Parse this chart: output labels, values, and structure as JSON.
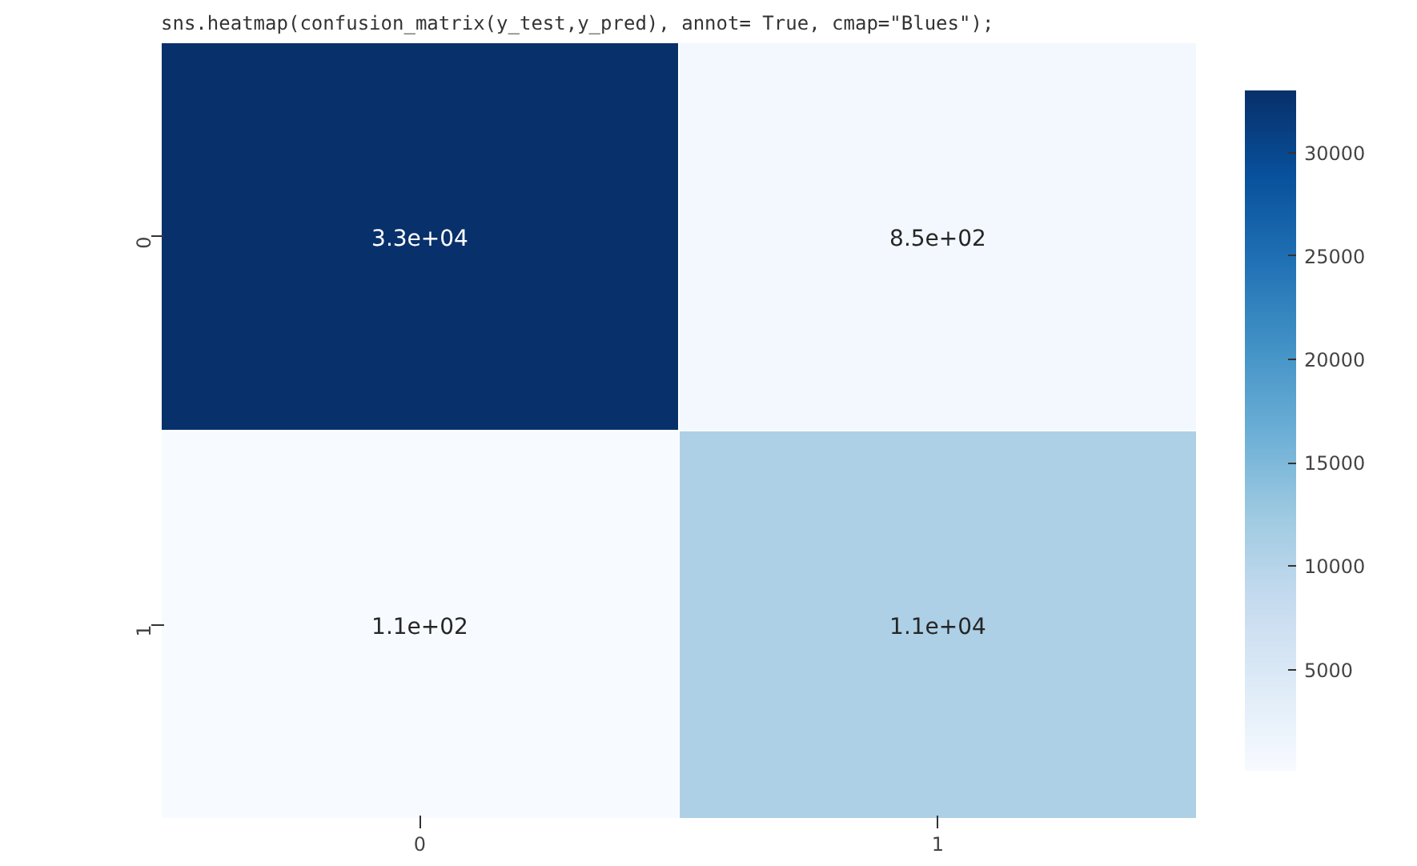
{
  "chart_data": {
    "type": "heatmap",
    "annotations": [
      "sns.heatmap(confusion_matrix(y_test,y_pred), annot= True, cmap=\"Blues\");"
    ],
    "categories": [
      "0",
      "1"
    ],
    "y_categories": [
      "0",
      "1"
    ],
    "cells": [
      [
        33000,
        850
      ],
      [
        110,
        11000
      ]
    ],
    "cell_labels": [
      [
        "3.3e+04",
        "8.5e+02"
      ],
      [
        "1.1e+02",
        "1.1e+04"
      ]
    ],
    "clim": [
      110,
      33000
    ],
    "cticks": [
      5000,
      10000,
      15000,
      20000,
      25000,
      30000
    ]
  }
}
